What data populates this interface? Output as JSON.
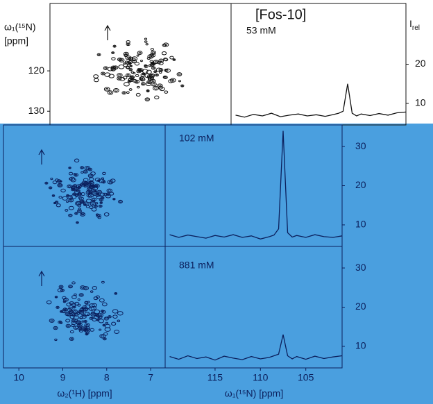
{
  "title": "[Fos-10]",
  "intensity_label": {
    "main": "I",
    "sub": "rel"
  },
  "n15_axis": {
    "label": "ω₁(¹⁵N)",
    "unit": "[ppm]",
    "lim": [
      103.3,
      133.4
    ],
    "ticks": [
      120,
      130
    ]
  },
  "h1_axis": {
    "label": "ω₂(¹H) [ppm]",
    "lim": [
      10.35,
      6.67
    ],
    "ticks": [
      10,
      9,
      8,
      7
    ]
  },
  "trace_axis": {
    "label": "ω₁(¹⁵N) [ppm]",
    "lim": [
      120.5,
      101
    ],
    "ticks": [
      115,
      110,
      105
    ]
  },
  "intensity_axis": {
    "lim": [
      4.5,
      35.5
    ]
  },
  "trace_ppm": [
    120,
    119,
    118,
    117,
    116,
    115,
    114,
    113,
    112,
    111,
    110,
    109,
    108.5,
    108,
    107.5,
    107,
    106.5,
    106,
    105,
    104,
    103,
    102,
    101
  ],
  "panels": [
    {
      "concentration": "53 mM",
      "intensity_ticks": [
        10,
        20
      ],
      "intensity": [
        7,
        6.5,
        7.2,
        6.8,
        7.5,
        6.6,
        7,
        7.3,
        6.8,
        7.1,
        6.7,
        7.2,
        7.5,
        8,
        15,
        7.5,
        6.8,
        7.3,
        6.9,
        7.4,
        7,
        7.6,
        7.8
      ]
    },
    {
      "concentration": "102 mM",
      "intensity_ticks": [
        10,
        20,
        30
      ],
      "intensity": [
        7.5,
        6.8,
        7.4,
        7,
        6.6,
        7.3,
        6.9,
        7.5,
        6.8,
        7.2,
        6.4,
        7,
        7.4,
        9,
        34,
        8,
        6.9,
        7.3,
        6.8,
        7.5,
        7,
        6.8,
        7.2
      ]
    },
    {
      "concentration": "881 mM",
      "intensity_ticks": [
        10,
        20,
        30
      ],
      "intensity": [
        7.4,
        6.7,
        7.6,
        6.9,
        7.3,
        6.5,
        7.5,
        7,
        6.6,
        7.4,
        6.8,
        7.2,
        7.6,
        8,
        13,
        7.6,
        6.8,
        7.4,
        6.7,
        7.5,
        6.9,
        7.3,
        7.6
      ]
    }
  ]
}
